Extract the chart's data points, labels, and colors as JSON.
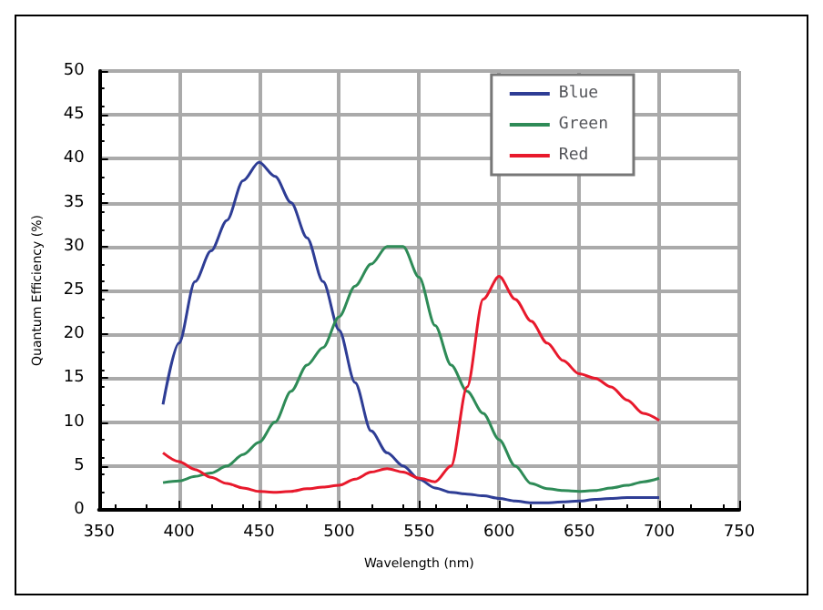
{
  "chart_data": {
    "type": "line",
    "xlabel": "Wavelength (nm)",
    "ylabel": "Quantum Efficiency (%)",
    "x": [
      390,
      400,
      410,
      420,
      430,
      440,
      450,
      460,
      470,
      480,
      490,
      500,
      510,
      520,
      530,
      540,
      550,
      560,
      570,
      580,
      590,
      600,
      610,
      620,
      630,
      640,
      650,
      660,
      670,
      680,
      690,
      700
    ],
    "series": [
      {
        "name": "Blue",
        "color": "#2e3d95",
        "values": [
          12,
          19,
          26,
          29.5,
          33,
          37.5,
          39.6,
          38,
          35,
          31,
          26,
          20.5,
          14.5,
          9,
          6.5,
          5,
          3.5,
          2.5,
          2,
          1.8,
          1.6,
          1.3,
          1,
          0.8,
          0.8,
          0.9,
          1,
          1.2,
          1.3,
          1.4,
          1.4,
          1.4
        ]
      },
      {
        "name": "Green",
        "color": "#2e8b57",
        "values": [
          3.1,
          3.3,
          3.8,
          4.2,
          5,
          6.3,
          7.7,
          10,
          13.5,
          16.5,
          18.5,
          22,
          25.5,
          28,
          30,
          30,
          26.5,
          21,
          16.5,
          13.5,
          11,
          8,
          5,
          3,
          2.4,
          2.2,
          2.1,
          2.2,
          2.5,
          2.8,
          3.2,
          3.6
        ]
      },
      {
        "name": "Red",
        "color": "#e8192c",
        "values": [
          6.5,
          5.5,
          4.6,
          3.7,
          3,
          2.5,
          2.1,
          2,
          2.1,
          2.4,
          2.6,
          2.8,
          3.5,
          4.3,
          4.7,
          4.3,
          3.6,
          3.2,
          5,
          14,
          24,
          26.6,
          24,
          21.5,
          19,
          17,
          15.5,
          15,
          14,
          12.5,
          11,
          10.2
        ]
      }
    ],
    "xlim": [
      350,
      750
    ],
    "xticks": [
      350,
      400,
      450,
      500,
      550,
      600,
      650,
      700,
      750
    ],
    "ylim": [
      0,
      50
    ],
    "yticks": [
      0,
      5,
      10,
      15,
      20,
      25,
      30,
      35,
      40,
      45,
      50
    ],
    "grid": true,
    "legend": "top right",
    "marker": "none",
    "line_style": "solid"
  }
}
